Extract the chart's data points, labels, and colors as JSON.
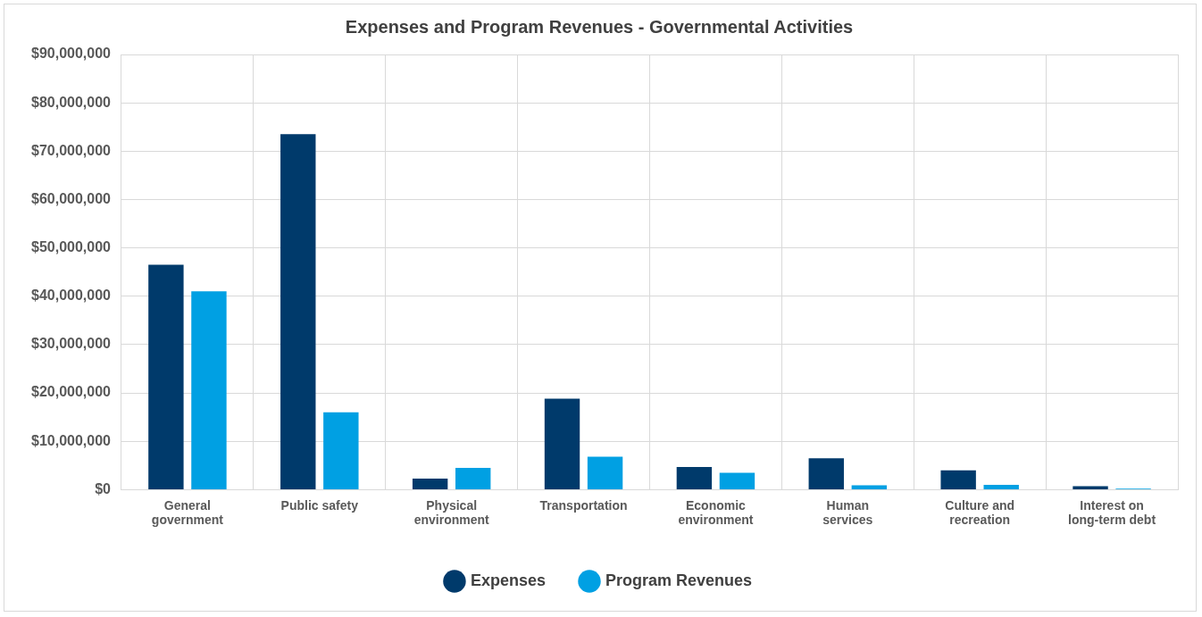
{
  "chart_data": {
    "type": "bar",
    "title": "Expenses and Program Revenues - Governmental Activities",
    "categories": [
      "General government",
      "Public safety",
      "Physical environment",
      "Transportation",
      "Economic environment",
      "Human services",
      "Culture and recreation",
      "Interest on long-term debt"
    ],
    "series": [
      {
        "name": "Expenses",
        "color": "#003a6b",
        "values": [
          46500000,
          73500000,
          2300000,
          18800000,
          4700000,
          6500000,
          4000000,
          700000
        ]
      },
      {
        "name": "Program Revenues",
        "color": "#00a0e3",
        "values": [
          41000000,
          16000000,
          4500000,
          6800000,
          3500000,
          900000,
          1000000,
          200000
        ]
      }
    ],
    "ylim": [
      0,
      90000000
    ],
    "yticks": [
      {
        "value": 0,
        "label": "$0"
      },
      {
        "value": 10000000,
        "label": "$10,000,000"
      },
      {
        "value": 20000000,
        "label": "$20,000,000"
      },
      {
        "value": 30000000,
        "label": "$30,000,000"
      },
      {
        "value": 40000000,
        "label": "$40,000,000"
      },
      {
        "value": 50000000,
        "label": "$50,000,000"
      },
      {
        "value": 60000000,
        "label": "$60,000,000"
      },
      {
        "value": 70000000,
        "label": "$70,000,000"
      },
      {
        "value": 80000000,
        "label": "$80,000,000"
      },
      {
        "value": 90000000,
        "label": "$90,000,000"
      }
    ],
    "grid": true,
    "legend": "bottom"
  }
}
